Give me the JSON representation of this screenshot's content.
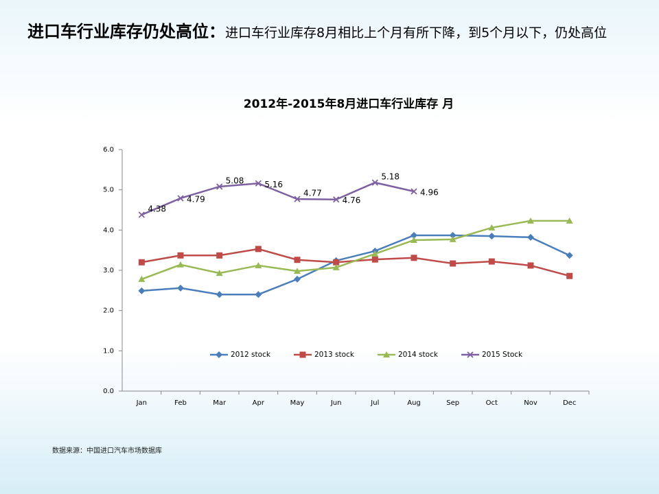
{
  "header": {
    "title": "进口车行业库存仍处高位：",
    "text": "进口车行业库存8月相比上个月有所下降，到5个月以下，仍处高位"
  },
  "chart_data": {
    "type": "line",
    "title": "2012年-2015年8月进口车行业库存  月",
    "categories": [
      "Jan",
      "Feb",
      "Mar",
      "Apr",
      "May",
      "Jun",
      "Jul",
      "Aug",
      "Sep",
      "Oct",
      "Nov",
      "Dec"
    ],
    "series": [
      {
        "name": "2012 stock",
        "color": "#4a7ebb",
        "marker": "diamond",
        "values": [
          2.49,
          2.56,
          2.4,
          2.4,
          2.78,
          3.24,
          3.48,
          3.87,
          3.87,
          3.85,
          3.82,
          3.37
        ]
      },
      {
        "name": "2013 stock",
        "color": "#be4b48",
        "marker": "square",
        "values": [
          3.2,
          3.37,
          3.37,
          3.53,
          3.26,
          3.2,
          3.27,
          3.31,
          3.17,
          3.22,
          3.12,
          2.86
        ]
      },
      {
        "name": "2014 stock",
        "color": "#98b954",
        "marker": "triangle",
        "values": [
          2.78,
          3.14,
          2.93,
          3.12,
          2.98,
          3.07,
          3.41,
          3.75,
          3.77,
          4.06,
          4.23,
          4.23
        ]
      },
      {
        "name": "2015 Stock",
        "color": "#7d60a0",
        "marker": "x",
        "data_labels": true,
        "values": [
          4.38,
          4.79,
          5.08,
          5.16,
          4.77,
          4.76,
          5.18,
          4.96,
          null,
          null,
          null,
          null
        ]
      }
    ],
    "ylim": [
      0,
      6
    ],
    "yticks": [
      {
        "value": 0,
        "label": "0.0"
      },
      {
        "value": 1,
        "label": "1.0"
      },
      {
        "value": 2,
        "label": "2.0"
      },
      {
        "value": 3,
        "label": "3.0"
      },
      {
        "value": 4,
        "label": "4.0"
      },
      {
        "value": 5,
        "label": "5.0"
      },
      {
        "value": 6,
        "label": "6.0"
      }
    ],
    "grid": false,
    "legend": "inside-bottom"
  },
  "footer": {
    "source": "数据来源：中国进口汽车市场数据库"
  }
}
